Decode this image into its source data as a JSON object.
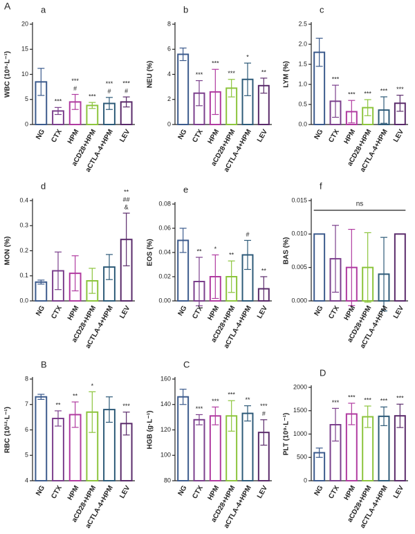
{
  "figure_label": "A",
  "chart_data": [
    {
      "type": "bar",
      "panel": "a",
      "ylabel": "WBC (10⁹·L⁻¹)",
      "categories": [
        "NG",
        "CTX",
        "HPM",
        "aCD28+HPM",
        "aCTLA-4+HPM",
        "LEV"
      ],
      "values": [
        8.5,
        2.7,
        4.5,
        3.8,
        4.2,
        4.5
      ],
      "errors": [
        2.7,
        0.7,
        1.5,
        0.6,
        1.2,
        1.0
      ],
      "colors": [
        "#3b5a8c",
        "#7b3f8c",
        "#b03aa0",
        "#8cc43c",
        "#2d5a78",
        "#5a2a6a"
      ],
      "annotations": [
        null,
        [
          "***"
        ],
        [
          "***",
          "#"
        ],
        [
          "***"
        ],
        [
          "***",
          "#"
        ],
        [
          "***",
          "#"
        ]
      ],
      "ylim": [
        0,
        20
      ],
      "yticks": [
        0,
        5,
        10,
        15,
        20
      ]
    },
    {
      "type": "bar",
      "panel": "b",
      "ylabel": "NEU (%)",
      "categories": [
        "NG",
        "CTX",
        "HPM",
        "aCD28+HPM",
        "aCTLA-4+HPM",
        "LEV"
      ],
      "values": [
        5.6,
        2.5,
        2.6,
        2.9,
        3.6,
        3.1
      ],
      "errors": [
        0.5,
        1.0,
        1.8,
        0.7,
        1.3,
        0.6
      ],
      "colors": [
        "#3b5a8c",
        "#7b3f8c",
        "#b03aa0",
        "#8cc43c",
        "#2d5a78",
        "#5a2a6a"
      ],
      "annotations": [
        null,
        [
          "***"
        ],
        [
          "***"
        ],
        [
          "***"
        ],
        [
          "*"
        ],
        [
          "**"
        ]
      ],
      "ylim": [
        0,
        8
      ],
      "yticks": [
        0,
        2,
        4,
        6,
        8
      ]
    },
    {
      "type": "bar",
      "panel": "c",
      "ylabel": "LYM (%)",
      "categories": [
        "NG",
        "CTX",
        "HPM",
        "aCD28+HPM",
        "aCTLA-4+HPM",
        "LEV"
      ],
      "values": [
        1.8,
        0.58,
        0.32,
        0.42,
        0.36,
        0.53
      ],
      "errors": [
        0.35,
        0.4,
        0.28,
        0.2,
        0.33,
        0.2
      ],
      "colors": [
        "#3b5a8c",
        "#7b3f8c",
        "#b03aa0",
        "#8cc43c",
        "#2d5a78",
        "#5a2a6a"
      ],
      "annotations": [
        null,
        [
          "***"
        ],
        [
          "***"
        ],
        [
          "***"
        ],
        [
          "***"
        ],
        [
          "***"
        ]
      ],
      "ylim": [
        0,
        2.5
      ],
      "yticks": [
        {
          "value": 0,
          "label": "0.0"
        },
        0.5,
        {
          "value": 1,
          "label": "1.0"
        },
        1.5,
        {
          "value": 2,
          "label": "2.0"
        },
        2.5
      ]
    },
    {
      "type": "bar",
      "panel": "d",
      "ylabel": "MON (%)",
      "categories": [
        "NG",
        "CTX",
        "HPM",
        "aCD28+HPM",
        "aCTLA-4+HPM",
        "LEV"
      ],
      "values": [
        0.075,
        0.12,
        0.11,
        0.08,
        0.135,
        0.245
      ],
      "errors": [
        0.008,
        0.075,
        0.07,
        0.05,
        0.05,
        0.105
      ],
      "colors": [
        "#3b5a8c",
        "#7b3f8c",
        "#b03aa0",
        "#8cc43c",
        "#2d5a78",
        "#5a2a6a"
      ],
      "annotations": [
        null,
        null,
        null,
        null,
        null,
        [
          "**",
          "##",
          "&"
        ]
      ],
      "ylim": [
        0,
        0.4
      ],
      "yticks": [
        {
          "value": 0,
          "label": "0.0"
        },
        0.1,
        0.2,
        0.3,
        0.4
      ]
    },
    {
      "type": "bar",
      "panel": "e",
      "ylabel": "EOS (%)",
      "categories": [
        "NG",
        "CTX",
        "HPM",
        "aCD28+HPM",
        "aCTLA-4+HPM",
        "LEV"
      ],
      "values": [
        0.05,
        0.016,
        0.02,
        0.02,
        0.038,
        0.01
      ],
      "errors": [
        0.01,
        0.02,
        0.018,
        0.013,
        0.012,
        0.01
      ],
      "colors": [
        "#3b5a8c",
        "#7b3f8c",
        "#b03aa0",
        "#8cc43c",
        "#2d5a78",
        "#5a2a6a"
      ],
      "annotations": [
        null,
        [
          "**"
        ],
        [
          "*"
        ],
        [
          "**"
        ],
        [
          "#"
        ],
        [
          "**"
        ]
      ],
      "ylim": [
        0,
        0.08
      ],
      "yticks": [
        {
          "value": 0,
          "label": "0.00"
        },
        {
          "value": 0.02,
          "label": "0.02"
        },
        {
          "value": 0.04,
          "label": "0.04"
        },
        {
          "value": 0.06,
          "label": "0.06"
        },
        {
          "value": 0.08,
          "label": "0.08"
        }
      ]
    },
    {
      "type": "bar",
      "panel": "f",
      "ylabel": "BAS (%)",
      "categories": [
        "NG",
        "CTX",
        "HPM",
        "aCD28+HPM",
        "aCTLA-4+HPM",
        "LEV"
      ],
      "values": [
        0.01,
        0.0063,
        0.005,
        0.005,
        0.004,
        0.01
      ],
      "errors": [
        0,
        0.005,
        0.0057,
        0.0052,
        0.0055,
        0
      ],
      "colors": [
        "#3b5a8c",
        "#7b3f8c",
        "#b03aa0",
        "#8cc43c",
        "#2d5a78",
        "#5a2a6a"
      ],
      "bracket_label": "ns",
      "ylim": [
        0,
        0.015
      ],
      "yticks": [
        {
          "value": 0,
          "label": "0.000"
        },
        0.005,
        {
          "value": 0.01,
          "label": "0.010"
        },
        0.015
      ]
    },
    {
      "type": "bar",
      "panel": "B",
      "ylabel": "RBC (10¹²·L⁻¹)",
      "categories": [
        "NG",
        "CTX",
        "HPM",
        "aCD28+HPM",
        "aCTLA-4+HPM",
        "LEV"
      ],
      "values": [
        7.3,
        6.45,
        6.6,
        6.7,
        6.8,
        6.25
      ],
      "errors": [
        0.1,
        0.3,
        0.5,
        0.8,
        0.5,
        0.45
      ],
      "colors": [
        "#3b5a8c",
        "#7b3f8c",
        "#b03aa0",
        "#8cc43c",
        "#2d5a78",
        "#5a2a6a"
      ],
      "annotations": [
        null,
        [
          "**"
        ],
        [
          "**"
        ],
        [
          "*"
        ],
        null,
        [
          "***"
        ]
      ],
      "ylim": [
        4,
        8
      ],
      "yticks": [
        4,
        5,
        6,
        7,
        8
      ]
    },
    {
      "type": "bar",
      "panel": "C",
      "ylabel": "HGB (g·L⁻¹)",
      "categories": [
        "NG",
        "CTX",
        "HPM",
        "aCD28+HPM",
        "aCTLA-4+HPM",
        "LEV"
      ],
      "values": [
        146,
        128,
        131,
        131,
        133,
        118
      ],
      "errors": [
        6,
        4,
        7,
        12,
        6,
        10
      ],
      "colors": [
        "#3b5a8c",
        "#7b3f8c",
        "#b03aa0",
        "#8cc43c",
        "#2d5a78",
        "#5a2a6a"
      ],
      "annotations": [
        null,
        [
          "***"
        ],
        [
          "***"
        ],
        [
          "***"
        ],
        [
          "**"
        ],
        [
          "***",
          "#"
        ]
      ],
      "ylim": [
        80,
        160
      ],
      "yticks": [
        80,
        100,
        120,
        140,
        160
      ]
    },
    {
      "type": "bar",
      "panel": "D",
      "ylabel": "PLT (10⁹·L⁻¹)",
      "categories": [
        "NG",
        "CTX",
        "HPM",
        "aCD28+HPM",
        "aCTLA-4+HPM",
        "LEV"
      ],
      "values": [
        600,
        1200,
        1430,
        1370,
        1380,
        1390
      ],
      "errors": [
        100,
        350,
        230,
        230,
        200,
        250
      ],
      "colors": [
        "#3b5a8c",
        "#7b3f8c",
        "#b03aa0",
        "#8cc43c",
        "#2d5a78",
        "#5a2a6a"
      ],
      "annotations": [
        null,
        [
          "***"
        ],
        [
          "***"
        ],
        [
          "***"
        ],
        [
          "***"
        ],
        [
          "***"
        ]
      ],
      "ylim": [
        0,
        2000
      ],
      "yticks": [
        0,
        500,
        1000,
        1500,
        2000
      ]
    }
  ]
}
